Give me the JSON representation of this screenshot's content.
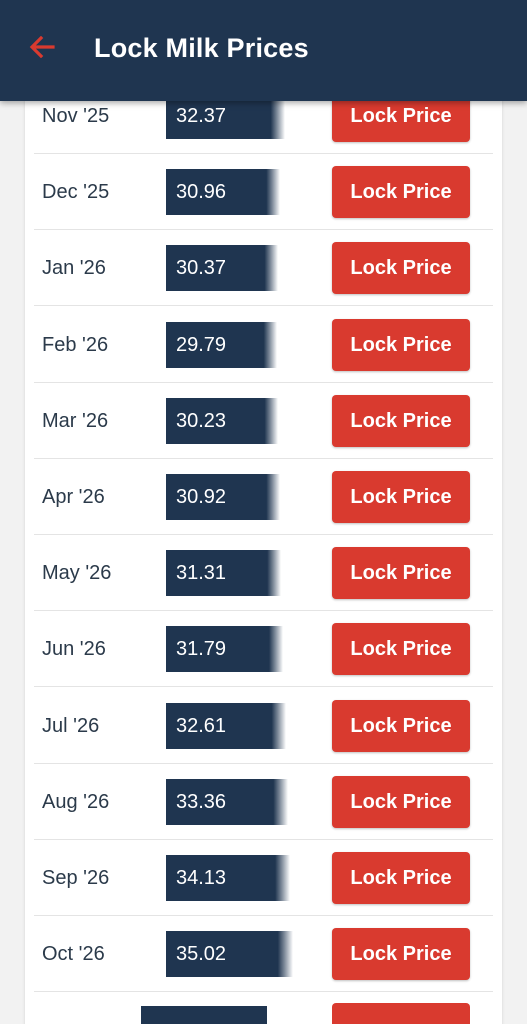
{
  "header": {
    "title": "Lock Milk Prices",
    "back_icon": "arrow-left-icon",
    "accent_color": "#d93a2f",
    "background_color": "#1f3550"
  },
  "lock_label": "Lock Price",
  "rows": [
    {
      "month": "Nov '25",
      "price": "32.37"
    },
    {
      "month": "Dec '25",
      "price": "30.96"
    },
    {
      "month": "Jan '26",
      "price": "30.37"
    },
    {
      "month": "Feb '26",
      "price": "29.79"
    },
    {
      "month": "Mar '26",
      "price": "30.23"
    },
    {
      "month": "Apr '26",
      "price": "30.92"
    },
    {
      "month": "May '26",
      "price": "31.31"
    },
    {
      "month": "Jun '26",
      "price": "31.79"
    },
    {
      "month": "Jul '26",
      "price": "32.61"
    },
    {
      "month": "Aug '26",
      "price": "33.36"
    },
    {
      "month": "Sep '26",
      "price": "34.13"
    },
    {
      "month": "Oct '26",
      "price": "35.02"
    }
  ]
}
